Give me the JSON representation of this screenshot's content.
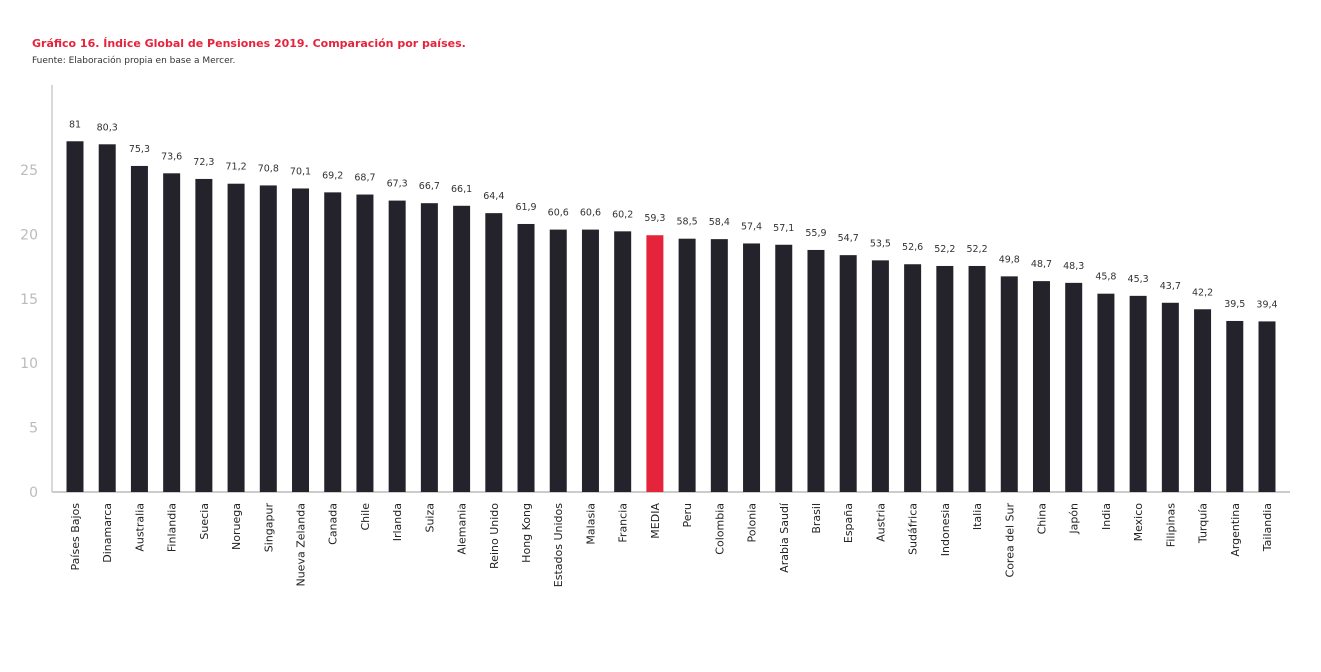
{
  "title": "Gráfico 16. Índice Global de Pensiones 2019. Comparación por países.",
  "source": "Fuente: Elaboración propia en base a Mercer.",
  "chart_data": {
    "type": "bar",
    "title": "Gráfico 16. Índice Global de Pensiones 2019. Comparación por países.",
    "xlabel": "",
    "ylabel": "",
    "yticks": [
      "0",
      "5",
      "10",
      "15",
      "20",
      "25"
    ],
    "grid": false,
    "bar_color": "#24232b",
    "highlight_color": "#e5233b",
    "highlight_category": "MEDIA",
    "categories": [
      "Países Bajos",
      "Dinamarca",
      "Australia",
      "Finlandia",
      "Suecia",
      "Noruega",
      "Singapur",
      "Nueva Zelanda",
      "Canada",
      "Chile",
      "Irlanda",
      "Suiza",
      "Alemania",
      "Reino Unido",
      "Hong Kong",
      "Estados Unidos",
      "Malasia",
      "Francia",
      "MEDIA",
      "Peru",
      "Colombia",
      "Polonia",
      "Arabia Saudí",
      "Brasil",
      "España",
      "Austria",
      "Sudáfrica",
      "Indonesia",
      "Italia",
      "Corea del Sur",
      "China",
      "Japón",
      "India",
      "Mexico",
      "Filipinas",
      "Turquía",
      "Argentina",
      "Tailandia"
    ],
    "values": [
      81,
      80.3,
      75.3,
      73.6,
      72.3,
      71.2,
      70.8,
      70.1,
      69.2,
      68.7,
      67.3,
      66.7,
      66.1,
      64.4,
      61.9,
      60.6,
      60.6,
      60.2,
      59.3,
      58.5,
      58.4,
      57.4,
      57.1,
      55.9,
      54.7,
      53.5,
      52.6,
      52.2,
      52.2,
      49.8,
      48.7,
      48.3,
      45.8,
      45.3,
      43.7,
      42.2,
      39.5,
      39.4
    ],
    "data_labels": [
      "81",
      "80,3",
      "75,3",
      "73,6",
      "72,3",
      "71,2",
      "70,8",
      "70,1",
      "69,2",
      "68,7",
      "67,3",
      "66,7",
      "66,1",
      "64,4",
      "61,9",
      "60,6",
      "60,6",
      "60,2",
      "59,3",
      "58,5",
      "58,4",
      "57,4",
      "57,1",
      "55,9",
      "54,7",
      "53,5",
      "52,6",
      "52,2",
      "52,2",
      "49,8",
      "48,7",
      "48,3",
      "45,8",
      "45,3",
      "43,7",
      "42,2",
      "39,5",
      "39,4"
    ]
  }
}
